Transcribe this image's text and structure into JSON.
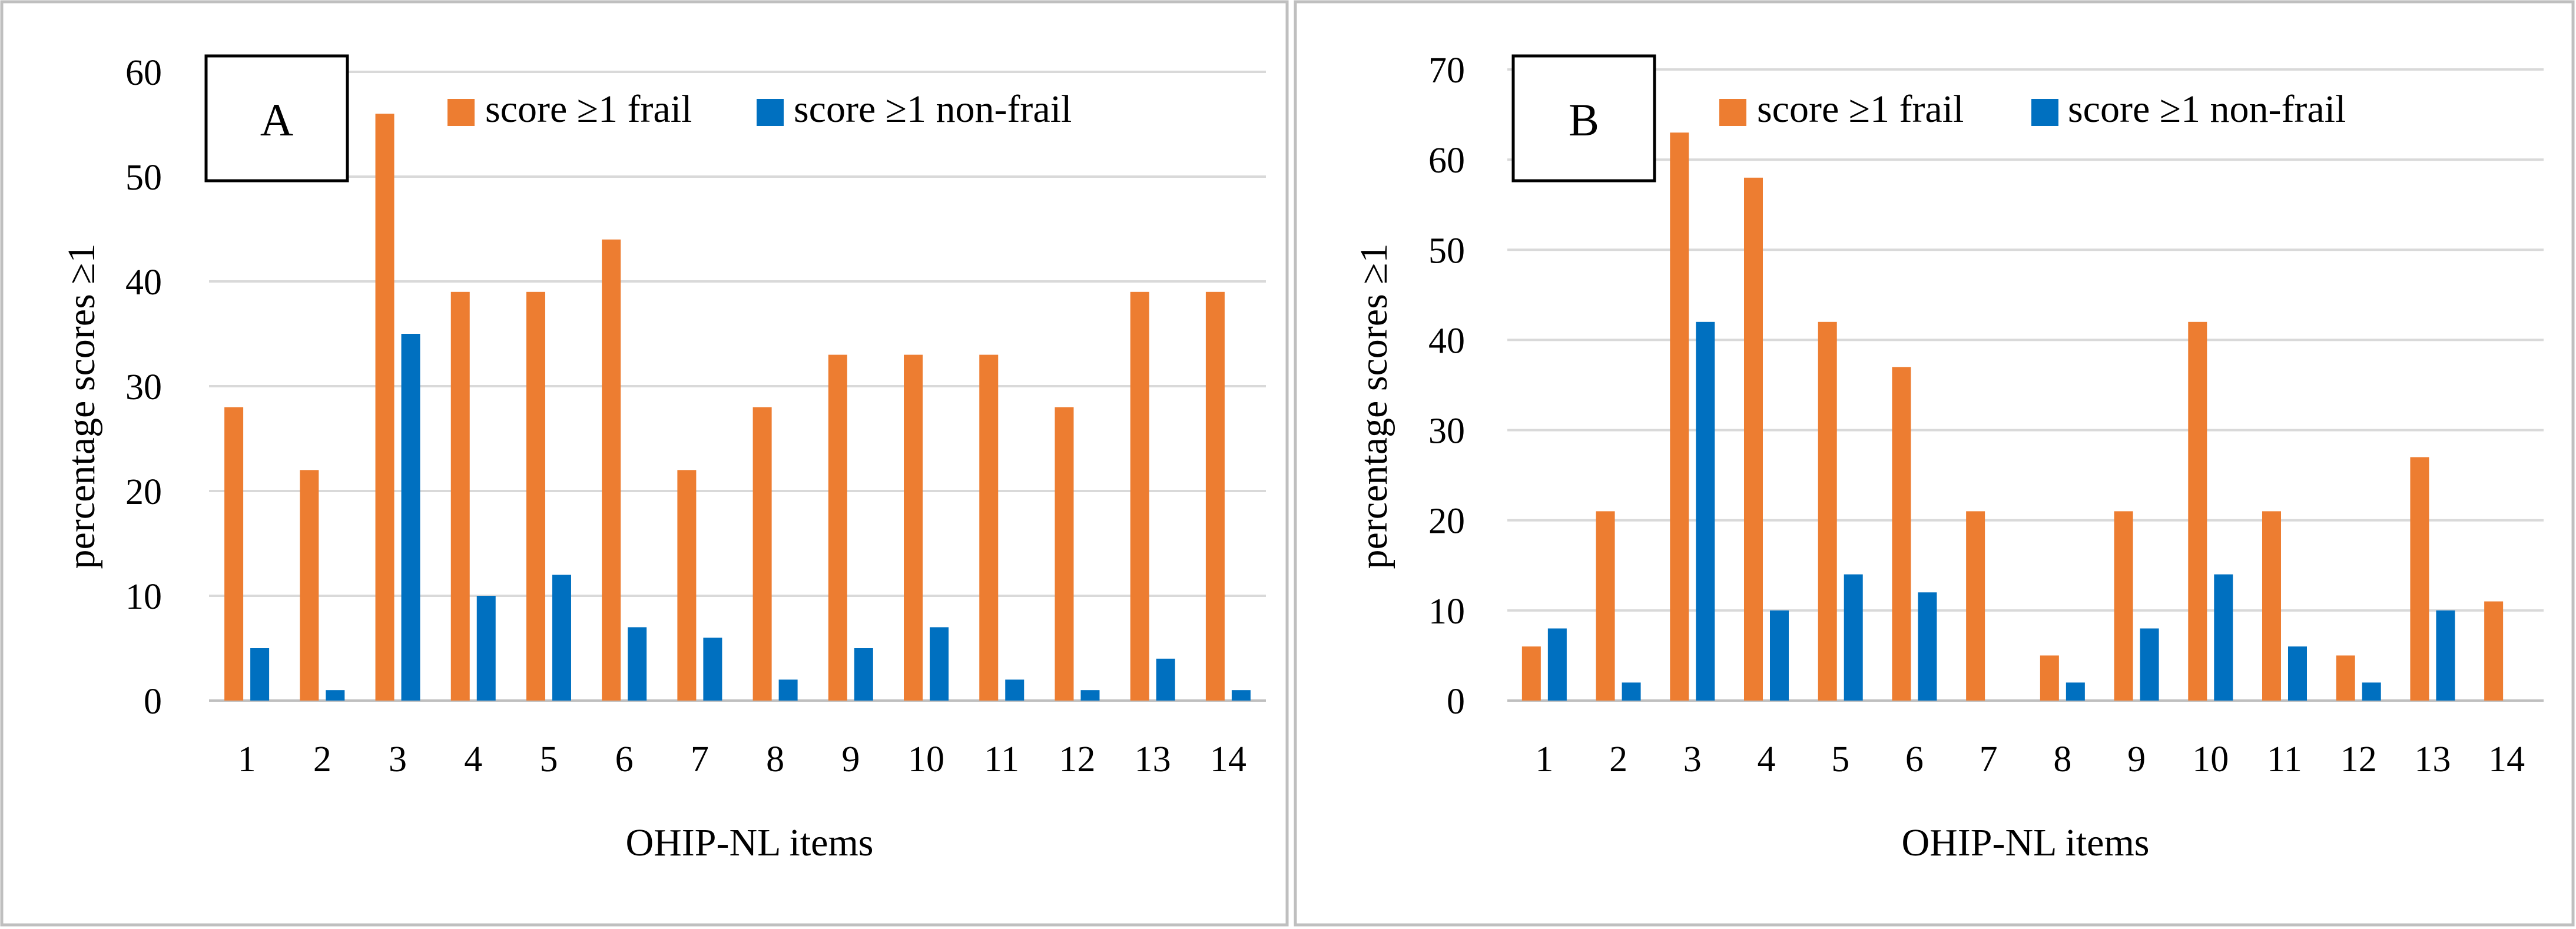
{
  "colors": {
    "frail": "#ED7D31",
    "non_frail": "#0070C0",
    "grid": "#D9D9D9",
    "panel_border": "#BFBFBF",
    "text": "#000000"
  },
  "chart_data": [
    {
      "type": "bar",
      "panel_label": "A",
      "categories": [
        "1",
        "2",
        "3",
        "4",
        "5",
        "6",
        "7",
        "8",
        "9",
        "10",
        "11",
        "12",
        "13",
        "14"
      ],
      "series": [
        {
          "name": "score ≥1 frail",
          "values": [
            28,
            22,
            56,
            39,
            39,
            44,
            22,
            28,
            33,
            33,
            33,
            28,
            39,
            39
          ]
        },
        {
          "name": "score ≥1 non-frail",
          "values": [
            5,
            1,
            35,
            10,
            12,
            7,
            6,
            2,
            5,
            7,
            2,
            1,
            4,
            1
          ]
        }
      ],
      "xlabel": "OHIP-NL items",
      "ylabel": "percentage scores ≥1",
      "ylim": [
        0,
        60
      ],
      "yticks": [
        0,
        10,
        20,
        30,
        40,
        50,
        60
      ],
      "grid": true,
      "legend_position": "top"
    },
    {
      "type": "bar",
      "panel_label": "B",
      "categories": [
        "1",
        "2",
        "3",
        "4",
        "5",
        "6",
        "7",
        "8",
        "9",
        "10",
        "11",
        "12",
        "13",
        "14"
      ],
      "series": [
        {
          "name": "score ≥1 frail",
          "values": [
            6,
            21,
            63,
            58,
            42,
            37,
            21,
            5,
            21,
            42,
            21,
            5,
            27,
            11
          ]
        },
        {
          "name": "score ≥1 non-frail",
          "values": [
            8,
            2,
            42,
            10,
            14,
            12,
            0,
            2,
            8,
            14,
            6,
            2,
            10,
            0
          ]
        }
      ],
      "xlabel": "OHIP-NL items",
      "ylabel": "percentage scores ≥1",
      "ylim": [
        0,
        70
      ],
      "yticks": [
        0,
        10,
        20,
        30,
        40,
        50,
        60,
        70
      ],
      "grid": true,
      "legend_position": "top"
    }
  ]
}
